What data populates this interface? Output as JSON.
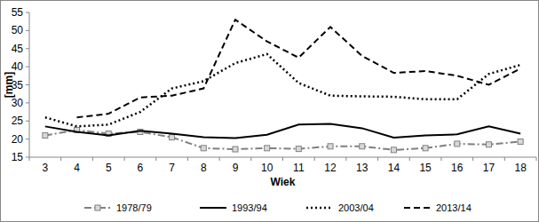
{
  "chart_data": {
    "type": "line",
    "x_label": "Wiek",
    "y_label": "[mm]",
    "categories": [
      "3",
      "4",
      "5",
      "6",
      "7",
      "8",
      "9",
      "10",
      "11",
      "12",
      "13",
      "14",
      "15",
      "16",
      "17",
      "18"
    ],
    "ylim": [
      15,
      55
    ],
    "yticks": [
      15,
      20,
      25,
      30,
      35,
      40,
      45,
      50,
      55
    ],
    "grid": false,
    "legend": "bottom",
    "series": [
      {
        "name": "1978/79",
        "color": "#808080",
        "line_style": "dashdot",
        "marker": "square",
        "values": [
          21,
          22.5,
          21.5,
          22,
          20.5,
          17.5,
          17.2,
          17.5,
          17.3,
          18,
          18,
          17,
          17.5,
          18.7,
          18.5,
          19.3
        ]
      },
      {
        "name": "1993/94",
        "color": "#000000",
        "line_style": "solid",
        "marker": "none",
        "values": [
          23.5,
          22,
          21,
          22.3,
          21.5,
          20.5,
          20.3,
          21.2,
          24,
          24.2,
          23,
          20.4,
          21,
          21.3,
          23.5,
          21.5
        ]
      },
      {
        "name": "2003/04",
        "color": "#000000",
        "line_style": "dotted",
        "marker": "none",
        "values": [
          26,
          23.5,
          24,
          27.5,
          34,
          36,
          41,
          43.5,
          35.5,
          32,
          31.8,
          31.7,
          31,
          31,
          38,
          40.5
        ]
      },
      {
        "name": "2013/14",
        "color": "#000000",
        "line_style": "dashed",
        "marker": "none",
        "values": [
          null,
          26,
          27,
          31.5,
          32,
          34,
          53,
          47,
          42.5,
          51,
          43,
          38.3,
          38.8,
          37.5,
          35,
          39.5
        ]
      }
    ]
  }
}
